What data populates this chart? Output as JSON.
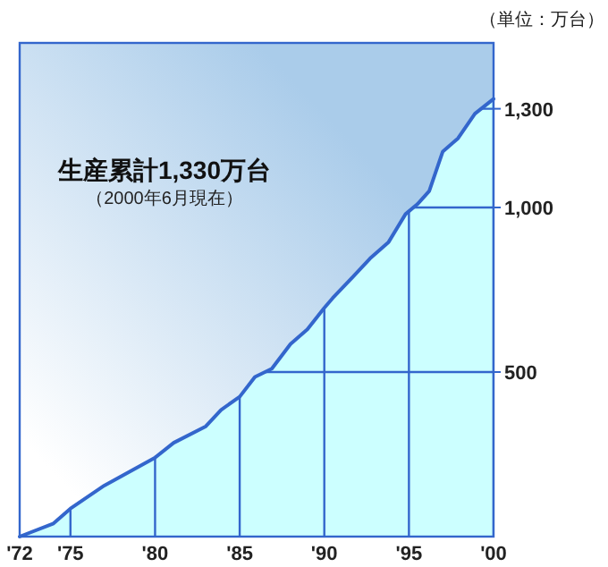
{
  "chart_data": {
    "type": "area",
    "title": "生産累計1,330万台",
    "subtitle": "（2000年6月現在）",
    "ylabel": "（単位：万台）",
    "series": [
      {
        "color": "#3366cc",
        "x": [
          1972,
          1974,
          1975,
          1977,
          1980,
          1981.1,
          1983,
          1983.9,
          1985,
          1985.9,
          1986.9,
          1988,
          1989,
          1990,
          1990.5,
          1991.7,
          1992.7,
          1993.8,
          1994.8,
          1995.5,
          1996.2,
          1997,
          1997.9,
          1998.9,
          2000
        ],
        "values": [
          0,
          40,
          85,
          155,
          240,
          285,
          335,
          385,
          425,
          485,
          510,
          585,
          630,
          695,
          725,
          790,
          845,
          895,
          980,
          1010,
          1050,
          1170,
          1210,
          1285,
          1330
        ]
      }
    ],
    "xlim": [
      1972,
      2000
    ],
    "ylim": [
      0,
      1500
    ],
    "xticks": [
      {
        "value": 1972,
        "label": "'72"
      },
      {
        "value": 1975,
        "label": "'75"
      },
      {
        "value": 1980,
        "label": "'80"
      },
      {
        "value": 1985,
        "label": "'85"
      },
      {
        "value": 1990,
        "label": "'90"
      },
      {
        "value": 1995,
        "label": "'95"
      },
      {
        "value": 2000,
        "label": "'00"
      }
    ],
    "yticks": [
      {
        "value": 500,
        "label": "500"
      },
      {
        "value": 1000,
        "label": "1,000"
      },
      {
        "value": 1300,
        "label": "1,300"
      }
    ],
    "grid": true
  }
}
